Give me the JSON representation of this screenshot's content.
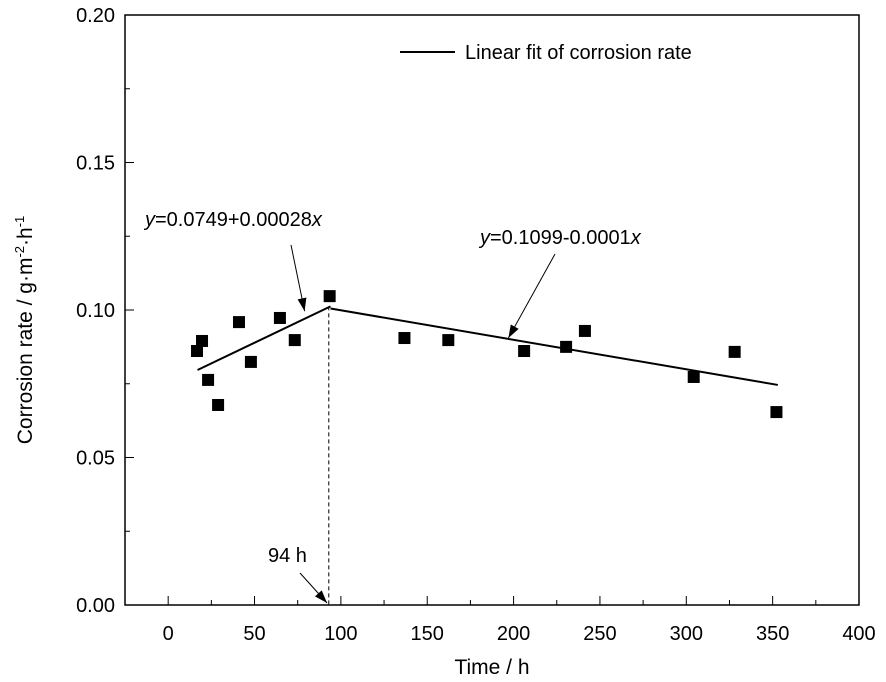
{
  "chart_data": {
    "type": "scatter",
    "title": "",
    "xlabel": "Time / h",
    "ylabel": {
      "main": "Corrosion rate / g·m",
      "sup1": "-2",
      "mid": "·h",
      "sup2": "-1"
    },
    "xlim": [
      -25,
      400
    ],
    "ylim": [
      0.0,
      0.2
    ],
    "xticks": [
      0,
      50,
      100,
      150,
      200,
      250,
      300,
      350,
      400
    ],
    "xtick_labels": [
      "0",
      "50",
      "100",
      "150",
      "200",
      "250",
      "300",
      "350",
      "400"
    ],
    "xminor": [
      -25,
      25,
      75,
      125,
      175,
      225,
      275,
      325,
      375
    ],
    "yticks": [
      0.0,
      0.05,
      0.1,
      0.15,
      0.2
    ],
    "ytick_labels": [
      "0.00",
      "0.05",
      "0.10",
      "0.15",
      "0.20"
    ],
    "yminor": [
      0.025,
      0.075,
      0.125,
      0.175
    ],
    "grid": false,
    "series": [
      {
        "name": "Corrosion rate",
        "marker": "square",
        "color": "#000000",
        "x": [
          16.7,
          19.6,
          23.1,
          28.9,
          41.0,
          47.9,
          64.7,
          73.3,
          93.5,
          136.8,
          162.2,
          206.1,
          230.4,
          241.3,
          304.3,
          328.0,
          352.2
        ],
        "y": [
          0.0861,
          0.0895,
          0.0763,
          0.0678,
          0.0959,
          0.0824,
          0.0973,
          0.0898,
          0.1047,
          0.0905,
          0.0898,
          0.0861,
          0.0875,
          0.0929,
          0.0773,
          0.0858,
          0.0654
        ]
      }
    ],
    "fit_lines": [
      {
        "name": "Linear fit of corrosion rate",
        "equation": "y=0.0749+0.00028x",
        "intercept": 0.0749,
        "slope": 0.00028,
        "x_range": [
          17,
          94
        ]
      },
      {
        "name": "Linear fit of corrosion rate",
        "equation": "y=0.1099-0.0001x",
        "intercept": 0.1099,
        "slope": -0.0001,
        "x_range": [
          94,
          353
        ]
      }
    ],
    "legend": {
      "position": "top-right",
      "entries": [
        {
          "label": "Linear fit of corrosion rate",
          "style": "line"
        }
      ]
    },
    "annotations": [
      {
        "id": "eq1",
        "prefix": "y",
        "text": "=0.0749+0.00028",
        "suffix": "x",
        "arrow_to": [
          79,
          0.0996
        ]
      },
      {
        "id": "eq2",
        "prefix": "y",
        "text": "=0.1099-0.0001",
        "suffix": "x",
        "arrow_to": [
          197,
          0.0905
        ]
      },
      {
        "id": "breakpoint",
        "text": "94 h",
        "arrow_to": [
          92,
          0.0
        ],
        "vline_x": 93
      }
    ]
  }
}
